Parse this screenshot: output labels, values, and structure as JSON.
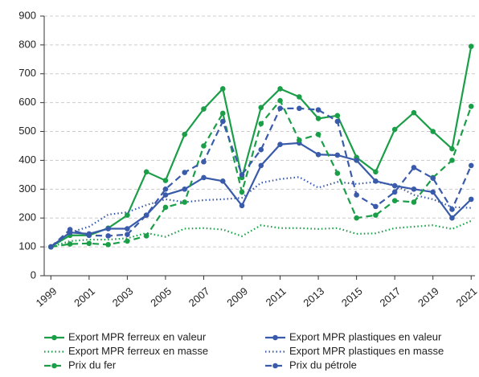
{
  "chart_data": {
    "type": "line",
    "x": [
      1999,
      2000,
      2001,
      2002,
      2003,
      2004,
      2005,
      2006,
      2007,
      2008,
      2009,
      2010,
      2011,
      2012,
      2013,
      2014,
      2015,
      2016,
      2017,
      2018,
      2019,
      2020,
      2021
    ],
    "xlim": [
      1998.65,
      2021.2
    ],
    "xticks": [
      1999,
      2001,
      2003,
      2005,
      2007,
      2009,
      2011,
      2013,
      2015,
      2017,
      2019,
      2021
    ],
    "ylim": [
      0,
      900
    ],
    "yticks": [
      0,
      100,
      200,
      300,
      400,
      500,
      600,
      700,
      800,
      900
    ],
    "grid": true,
    "legend": "bottom",
    "series": [
      {
        "name": "Export MPR ferreux en valeur",
        "color": "#1a9e48",
        "style": "solid",
        "markers": true,
        "values": [
          100,
          140,
          140,
          165,
          210,
          360,
          330,
          490,
          578,
          648,
          340,
          583,
          648,
          620,
          545,
          555,
          410,
          360,
          507,
          565,
          500,
          440,
          795
        ]
      },
      {
        "name": "Export MPR plastiques en valeur",
        "color": "#3a5baa",
        "style": "solid",
        "markers": true,
        "values": [
          100,
          150,
          145,
          163,
          163,
          210,
          280,
          300,
          340,
          328,
          243,
          382,
          455,
          460,
          420,
          418,
          400,
          328,
          312,
          300,
          290,
          200,
          265
        ]
      },
      {
        "name": "Export MPR ferreux en masse",
        "color": "#1a9e48",
        "style": "dotted",
        "markers": false,
        "values": [
          100,
          120,
          125,
          125,
          130,
          148,
          135,
          163,
          165,
          160,
          137,
          175,
          165,
          165,
          162,
          165,
          145,
          147,
          165,
          170,
          175,
          162,
          190
        ]
      },
      {
        "name": "Export MPR plastiques en masse",
        "color": "#3a5baa",
        "style": "dotted",
        "markers": false,
        "values": [
          100,
          150,
          170,
          212,
          220,
          245,
          265,
          255,
          262,
          265,
          270,
          322,
          335,
          342,
          305,
          325,
          318,
          325,
          315,
          280,
          265,
          238,
          235
        ]
      },
      {
        "name": "Prix du fer",
        "color": "#1a9e48",
        "style": "dashed",
        "markers": true,
        "values": [
          100,
          110,
          112,
          108,
          120,
          138,
          237,
          255,
          450,
          563,
          290,
          527,
          607,
          470,
          490,
          355,
          200,
          210,
          260,
          255,
          340,
          400,
          587
        ]
      },
      {
        "name": "Prix du pétrole",
        "color": "#3a5baa",
        "style": "dashed",
        "markers": true,
        "values": [
          100,
          160,
          140,
          138,
          143,
          210,
          300,
          358,
          395,
          535,
          350,
          437,
          580,
          580,
          575,
          535,
          280,
          240,
          290,
          375,
          338,
          230,
          382
        ]
      }
    ]
  }
}
